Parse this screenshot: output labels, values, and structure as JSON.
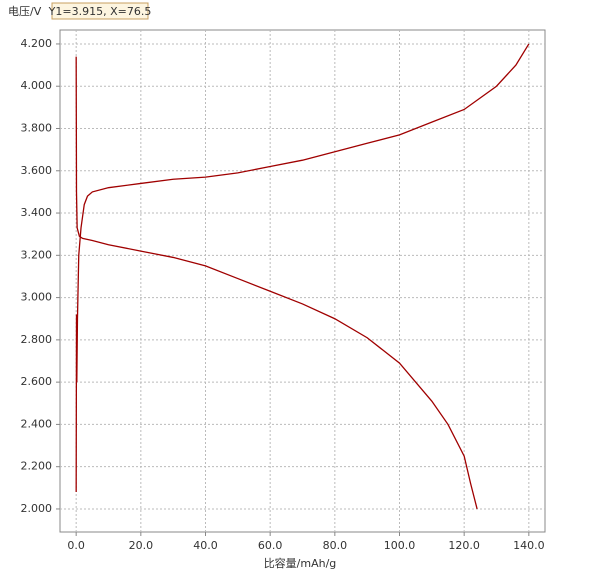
{
  "chart_data": {
    "type": "line",
    "ylabel": "电压/V",
    "xlabel": "比容量/mAh/g",
    "annotation": "Y1=3.915, X=76.5",
    "xlim": [
      -5,
      145
    ],
    "ylim": [
      1.891,
      4.266
    ],
    "xticks": [
      {
        "value": 0,
        "label": "0.0"
      },
      {
        "value": 20,
        "label": "20.0"
      },
      {
        "value": 40,
        "label": "40.0"
      },
      {
        "value": 60,
        "label": "60.0"
      },
      {
        "value": 80,
        "label": "80.0"
      },
      {
        "value": 100,
        "label": "100.0"
      },
      {
        "value": 120,
        "label": "120.0"
      },
      {
        "value": 140,
        "label": "140.0"
      }
    ],
    "yticks": [
      {
        "value": 2.0,
        "label": "2.000"
      },
      {
        "value": 2.2,
        "label": "2.200"
      },
      {
        "value": 2.4,
        "label": "2.400"
      },
      {
        "value": 2.6,
        "label": "2.600"
      },
      {
        "value": 2.8,
        "label": "2.800"
      },
      {
        "value": 3.0,
        "label": "3.000"
      },
      {
        "value": 3.2,
        "label": "3.200"
      },
      {
        "value": 3.4,
        "label": "3.400"
      },
      {
        "value": 3.6,
        "label": "3.600"
      },
      {
        "value": 3.8,
        "label": "3.800"
      },
      {
        "value": 4.0,
        "label": "4.000"
      },
      {
        "value": 4.2,
        "label": "4.200"
      }
    ],
    "grid": true,
    "series": [
      {
        "color": "#a00000",
        "x": [
          0,
          0.1,
          0.2,
          0.4,
          0.8,
          1.5,
          2.5,
          3.5,
          5,
          10,
          20,
          30,
          40,
          50,
          60,
          70,
          80,
          90,
          100,
          110,
          120,
          130,
          136,
          140
        ],
        "values": [
          2.08,
          2.92,
          2.6,
          2.9,
          3.2,
          3.33,
          3.44,
          3.48,
          3.5,
          3.52,
          3.54,
          3.56,
          3.57,
          3.59,
          3.62,
          3.65,
          3.69,
          3.73,
          3.77,
          3.83,
          3.89,
          4.0,
          4.1,
          4.2
        ]
      },
      {
        "color": "#a00000",
        "x": [
          0,
          0.1,
          0.3,
          1,
          2,
          5,
          10,
          20,
          30,
          40,
          50,
          60,
          70,
          80,
          90,
          100,
          110,
          115,
          120,
          122,
          124
        ],
        "values": [
          4.14,
          3.5,
          3.33,
          3.29,
          3.28,
          3.27,
          3.25,
          3.22,
          3.19,
          3.15,
          3.09,
          3.03,
          2.97,
          2.9,
          2.81,
          2.69,
          2.51,
          2.4,
          2.25,
          2.12,
          2.0
        ]
      }
    ]
  }
}
